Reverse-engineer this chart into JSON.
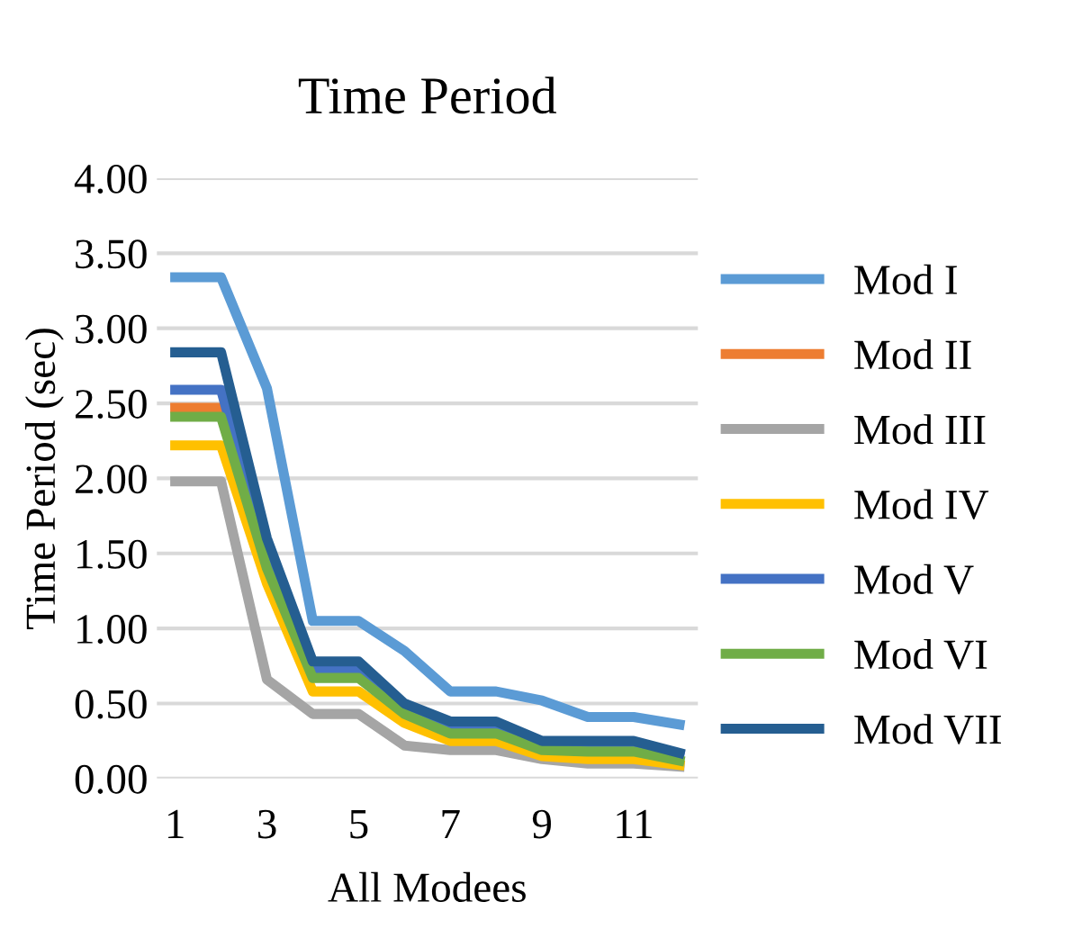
{
  "chart_data": {
    "type": "line",
    "title": "Time Period",
    "xlabel": "All Modees",
    "ylabel": "Time Period (sec)",
    "categories": [
      "1",
      null,
      "3",
      null,
      "5",
      null,
      "7",
      null,
      "9",
      null,
      "11",
      null
    ],
    "series": [
      {
        "name": "Mod I",
        "color": "#5b9bd5",
        "values": [
          3.34,
          3.34,
          2.6,
          1.05,
          1.05,
          0.85,
          0.58,
          0.58,
          0.52,
          0.41,
          0.41,
          0.36
        ]
      },
      {
        "name": "Mod II",
        "color": "#ed7d31",
        "values": [
          2.47,
          2.47,
          null,
          null,
          null,
          null,
          null,
          null,
          null,
          null,
          null,
          null
        ]
      },
      {
        "name": "Mod III",
        "color": "#a5a5a5",
        "values": [
          1.98,
          1.98,
          0.66,
          0.43,
          0.43,
          0.22,
          0.19,
          0.19,
          0.13,
          0.1,
          0.1,
          0.08
        ]
      },
      {
        "name": "Mod IV",
        "color": "#ffc000",
        "values": [
          2.22,
          2.22,
          1.3,
          0.58,
          0.58,
          0.37,
          0.25,
          0.25,
          0.15,
          0.13,
          0.13,
          0.09
        ]
      },
      {
        "name": "Mod V",
        "color": "#4472c4",
        "values": [
          2.59,
          2.59,
          1.5,
          0.72,
          0.72,
          0.47,
          0.35,
          0.35,
          0.23,
          0.22,
          0.22,
          0.16
        ]
      },
      {
        "name": "Mod VI",
        "color": "#70ad47",
        "values": [
          2.41,
          2.41,
          1.4,
          0.67,
          0.67,
          0.43,
          0.3,
          0.3,
          0.19,
          0.18,
          0.18,
          0.12
        ]
      },
      {
        "name": "Mod VII",
        "color": "#255e91",
        "values": [
          2.84,
          2.84,
          1.6,
          0.78,
          0.78,
          0.5,
          0.38,
          0.38,
          0.25,
          0.25,
          0.25,
          0.17
        ]
      }
    ],
    "ylim": [
      0,
      4
    ],
    "yticks": [
      {
        "value": 0,
        "label": "0.00"
      },
      {
        "value": 0.5,
        "label": "0.50"
      },
      {
        "value": 1,
        "label": "1.00"
      },
      {
        "value": 1.5,
        "label": "1.50"
      },
      {
        "value": 2,
        "label": "2.00"
      },
      {
        "value": 2.5,
        "label": "2.50"
      },
      {
        "value": 3,
        "label": "3.00"
      },
      {
        "value": 3.5,
        "label": "3.50"
      },
      {
        "value": 4,
        "label": "4.00"
      }
    ],
    "grid": "y",
    "legend": "right",
    "marker": "none",
    "line_style": "solid"
  }
}
